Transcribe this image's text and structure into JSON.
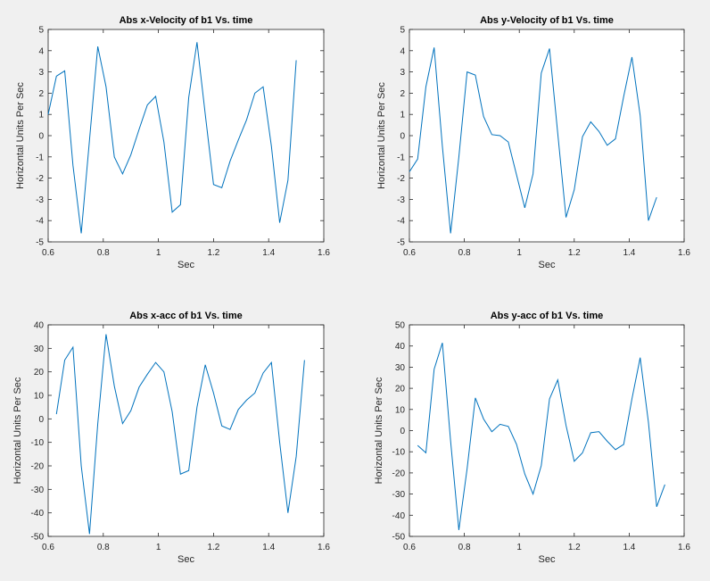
{
  "figure": {
    "background": "#f0f0f0",
    "line_color": "#0072bd"
  },
  "chart_data": [
    {
      "type": "line",
      "title": "Abs x-Velocity of b1 Vs. time",
      "xlabel": "Sec",
      "ylabel": "Horizontal Units Per Sec",
      "xlim": [
        0.6,
        1.6
      ],
      "ylim": [
        -5,
        5
      ],
      "xticks": [
        0.6,
        0.8,
        1,
        1.2,
        1.4,
        1.6
      ],
      "yticks": [
        -5,
        -4,
        -3,
        -2,
        -1,
        0,
        1,
        2,
        3,
        4,
        5
      ],
      "xticklabels": [
        "0.6",
        "0.8",
        "1",
        "1.2",
        "1.4",
        "1.6"
      ],
      "yticklabels": [
        "-5",
        "-4",
        "-3",
        "-2",
        "-1",
        "0",
        "1",
        "2",
        "3",
        "4",
        "5"
      ],
      "series": [
        {
          "x": [
            0.6,
            0.63,
            0.66,
            0.69,
            0.72,
            0.75,
            0.78,
            0.81,
            0.84,
            0.87,
            0.9,
            0.93,
            0.96,
            0.99,
            1.02,
            1.05,
            1.08,
            1.11,
            1.14,
            1.17,
            1.2,
            1.23,
            1.26,
            1.29,
            1.32,
            1.35,
            1.38,
            1.41,
            1.44,
            1.47,
            1.5
          ],
          "y": [
            1.0,
            2.8,
            3.05,
            -1.4,
            -4.6,
            -0.2,
            4.2,
            2.3,
            -1.0,
            -1.8,
            -0.9,
            0.3,
            1.45,
            1.85,
            -0.3,
            -3.6,
            -3.25,
            1.8,
            4.4,
            1.0,
            -2.3,
            -2.45,
            -1.2,
            -0.2,
            0.75,
            2.0,
            2.3,
            -0.5,
            -4.1,
            -2.1,
            3.55
          ]
        }
      ]
    },
    {
      "type": "line",
      "title": "Abs y-Velocity of b1 Vs. time",
      "xlabel": "Sec",
      "ylabel": "Horizontal Units Per Sec",
      "xlim": [
        0.6,
        1.6
      ],
      "ylim": [
        -5,
        5
      ],
      "xticks": [
        0.6,
        0.8,
        1,
        1.2,
        1.4,
        1.6
      ],
      "yticks": [
        -5,
        -4,
        -3,
        -2,
        -1,
        0,
        1,
        2,
        3,
        4,
        5
      ],
      "xticklabels": [
        "0.6",
        "0.8",
        "1",
        "1.2",
        "1.4",
        "1.6"
      ],
      "yticklabels": [
        "-5",
        "-4",
        "-3",
        "-2",
        "-1",
        "0",
        "1",
        "2",
        "3",
        "4",
        "5"
      ],
      "series": [
        {
          "x": [
            0.6,
            0.63,
            0.66,
            0.69,
            0.72,
            0.75,
            0.78,
            0.81,
            0.84,
            0.87,
            0.9,
            0.93,
            0.96,
            0.99,
            1.02,
            1.05,
            1.08,
            1.11,
            1.14,
            1.17,
            1.2,
            1.23,
            1.26,
            1.29,
            1.32,
            1.35,
            1.38,
            1.41,
            1.44,
            1.47,
            1.5
          ],
          "y": [
            -1.7,
            -1.1,
            2.3,
            4.15,
            -0.5,
            -4.6,
            -1.0,
            3.0,
            2.85,
            0.9,
            0.05,
            0.0,
            -0.3,
            -1.85,
            -3.4,
            -1.8,
            2.95,
            4.1,
            0.1,
            -3.85,
            -2.55,
            -0.05,
            0.65,
            0.2,
            -0.45,
            -0.15,
            1.85,
            3.7,
            0.95,
            -4.0,
            -2.9
          ]
        }
      ]
    },
    {
      "type": "line",
      "title": "Abs x-acc of b1 Vs. time",
      "xlabel": "Sec",
      "ylabel": "Horizontal Units Per Sec",
      "xlim": [
        0.6,
        1.6
      ],
      "ylim": [
        -50,
        40
      ],
      "xticks": [
        0.6,
        0.8,
        1,
        1.2,
        1.4,
        1.6
      ],
      "yticks": [
        -50,
        -40,
        -30,
        -20,
        -10,
        0,
        10,
        20,
        30,
        40
      ],
      "xticklabels": [
        "0.6",
        "0.8",
        "1",
        "1.2",
        "1.4",
        "1.6"
      ],
      "yticklabels": [
        "-50",
        "-40",
        "-30",
        "-20",
        "-10",
        "0",
        "10",
        "20",
        "30",
        "40"
      ],
      "series": [
        {
          "x": [
            0.63,
            0.66,
            0.69,
            0.72,
            0.75,
            0.78,
            0.81,
            0.84,
            0.87,
            0.9,
            0.93,
            0.96,
            0.99,
            1.02,
            1.05,
            1.08,
            1.11,
            1.14,
            1.17,
            1.2,
            1.23,
            1.26,
            1.29,
            1.32,
            1.35,
            1.38,
            1.41,
            1.44,
            1.47,
            1.5,
            1.53
          ],
          "y": [
            2,
            25,
            30.5,
            -20,
            -49,
            -2,
            36,
            14,
            -2,
            3.5,
            13.5,
            19,
            24,
            20,
            3,
            -23.5,
            -22,
            5,
            23,
            11,
            -3,
            -4.5,
            4,
            8,
            11,
            19.5,
            24,
            -10,
            -40,
            -16,
            25
          ]
        }
      ]
    },
    {
      "type": "line",
      "title": "Abs y-acc of b1 Vs. time",
      "xlabel": "Sec",
      "ylabel": "Horizontal Units Per Sec",
      "xlim": [
        0.6,
        1.6
      ],
      "ylim": [
        -50,
        50
      ],
      "xticks": [
        0.6,
        0.8,
        1,
        1.2,
        1.4,
        1.6
      ],
      "yticks": [
        -50,
        -40,
        -30,
        -20,
        -10,
        0,
        10,
        20,
        30,
        40,
        50
      ],
      "xticklabels": [
        "0.6",
        "0.8",
        "1",
        "1.2",
        "1.4",
        "1.6"
      ],
      "yticklabels": [
        "-50",
        "-40",
        "-30",
        "-20",
        "-10",
        "0",
        "10",
        "20",
        "30",
        "40",
        "50"
      ],
      "series": [
        {
          "x": [
            0.63,
            0.66,
            0.69,
            0.72,
            0.75,
            0.78,
            0.81,
            0.84,
            0.87,
            0.9,
            0.93,
            0.96,
            0.99,
            1.02,
            1.05,
            1.08,
            1.11,
            1.14,
            1.17,
            1.2,
            1.23,
            1.26,
            1.29,
            1.32,
            1.35,
            1.38,
            1.41,
            1.44,
            1.47,
            1.5,
            1.53
          ],
          "y": [
            -7,
            -10.5,
            29,
            41.5,
            -5,
            -47,
            -18,
            15.5,
            5.5,
            -0.5,
            3,
            2,
            -6.5,
            -20.5,
            -30,
            -16.5,
            15,
            24,
            2.5,
            -14.5,
            -10.5,
            -1,
            -0.5,
            -5,
            -9,
            -6.5,
            15,
            34.5,
            4,
            -36,
            -25.5
          ]
        }
      ]
    }
  ]
}
